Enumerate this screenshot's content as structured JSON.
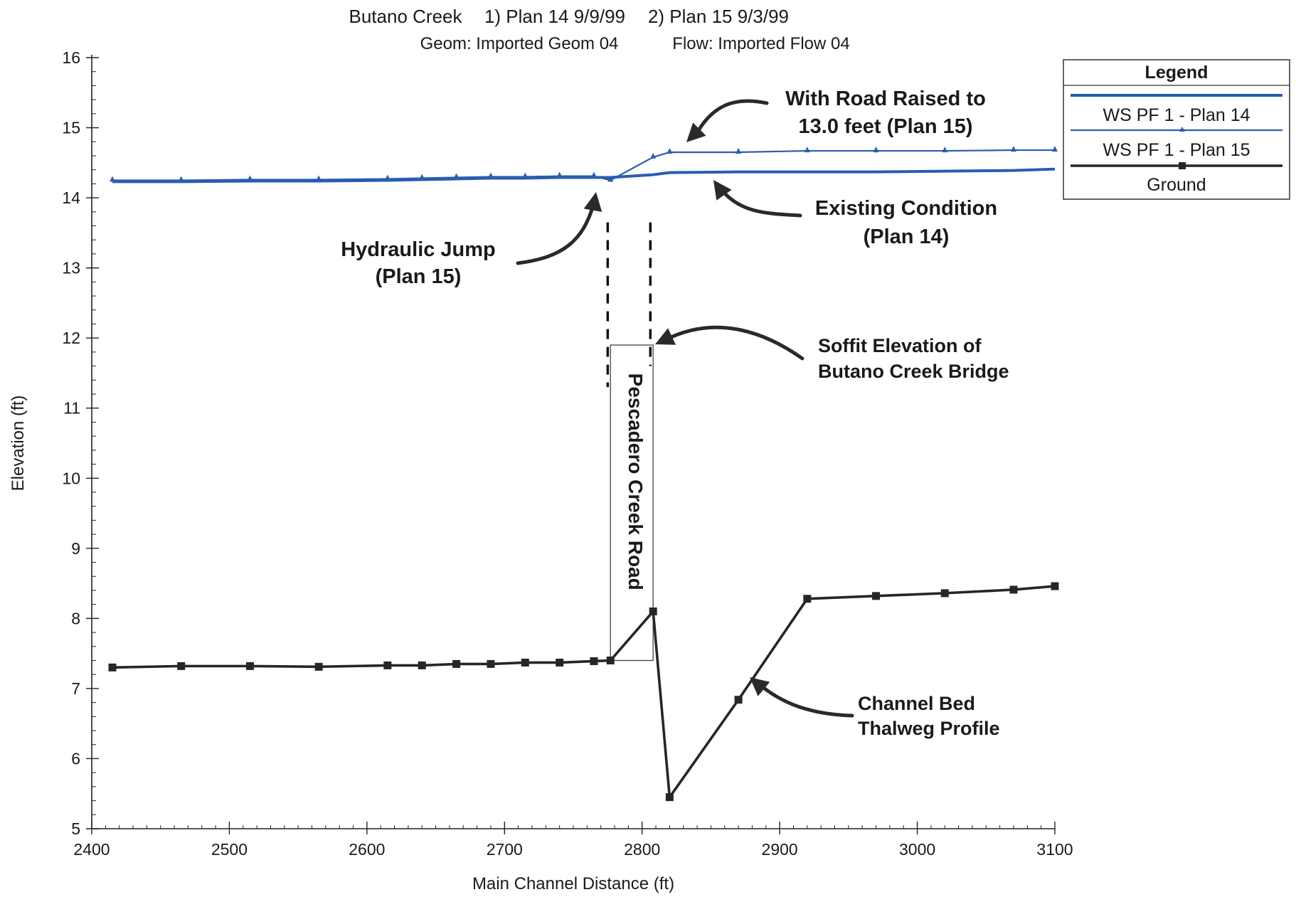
{
  "header": {
    "line1": [
      {
        "key": "river",
        "text": "Butano Creek"
      },
      {
        "key": "plan1",
        "text": "1) Plan 14    9/9/99"
      },
      {
        "key": "plan2",
        "text": "2) Plan 15    9/3/99"
      }
    ],
    "line2": [
      {
        "key": "geom",
        "text": "Geom: Imported Geom 04"
      },
      {
        "key": "flow",
        "text": "Flow: Imported Flow 04"
      }
    ]
  },
  "legend": {
    "title": "Legend",
    "entries": [
      {
        "key": "plan14",
        "label": "WS  PF 1 - Plan 14",
        "color": "#2a5db0",
        "marker": "none"
      },
      {
        "key": "plan15",
        "label": "WS  PF 1 - Plan 15",
        "color": "#2a5db0",
        "marker": "triangle"
      },
      {
        "key": "ground",
        "label": "Ground",
        "color": "#262626",
        "marker": "square"
      }
    ]
  },
  "annotations": [
    {
      "key": "road-raised",
      "lines": [
        "With Road Raised to",
        "13.0 feet (Plan 15)"
      ]
    },
    {
      "key": "existing",
      "lines": [
        "Existing Condition",
        "(Plan 14)"
      ]
    },
    {
      "key": "jump",
      "lines": [
        "Hydraulic Jump",
        "(Plan 15)"
      ]
    },
    {
      "key": "soffit",
      "lines": [
        "Soffit Elevation of",
        "Butano Creek Bridge"
      ]
    },
    {
      "key": "road",
      "lines": [
        "Pescadero Creek Road"
      ]
    },
    {
      "key": "thalweg",
      "lines": [
        "Channel Bed",
        "Thalweg Profile"
      ]
    }
  ],
  "chart_data": {
    "type": "line",
    "title": "Butano Creek    1) Plan 14    9/9/99    2) Plan 15    9/3/99",
    "subtitle": "Geom: Imported Geom 04    Flow: Imported Flow 04",
    "xlabel": "Main Channel Distance (ft)",
    "ylabel": "Elevation (ft)",
    "xlim": [
      2400,
      3100
    ],
    "ylim": [
      5,
      16
    ],
    "x_ticks": [
      2400,
      2500,
      2600,
      2700,
      2800,
      2900,
      3000,
      3100
    ],
    "y_ticks": [
      5,
      6,
      7,
      8,
      9,
      10,
      11,
      12,
      13,
      14,
      15,
      16
    ],
    "grid": false,
    "legend_position": "right",
    "series": [
      {
        "name": "WS  PF 1 - Plan 14",
        "color": "#2a5db0",
        "x": [
          2415,
          2465,
          2515,
          2565,
          2615,
          2640,
          2665,
          2690,
          2715,
          2740,
          2765,
          2777,
          2808,
          2820,
          2870,
          2920,
          2970,
          3020,
          3070,
          3100
        ],
        "y": [
          14.23,
          14.23,
          14.24,
          14.24,
          14.25,
          14.26,
          14.27,
          14.28,
          14.28,
          14.29,
          14.29,
          14.29,
          14.33,
          14.36,
          14.37,
          14.37,
          14.37,
          14.38,
          14.39,
          14.41
        ]
      },
      {
        "name": "WS  PF 1 - Plan 15",
        "color": "#2a5db0",
        "x": [
          2415,
          2465,
          2515,
          2565,
          2615,
          2640,
          2665,
          2690,
          2715,
          2740,
          2765,
          2777,
          2808,
          2820,
          2870,
          2920,
          2970,
          3020,
          3070,
          3100
        ],
        "y": [
          14.25,
          14.25,
          14.26,
          14.26,
          14.27,
          14.28,
          14.29,
          14.3,
          14.3,
          14.31,
          14.31,
          14.25,
          14.58,
          14.65,
          14.65,
          14.67,
          14.67,
          14.67,
          14.68,
          14.68
        ]
      },
      {
        "name": "Ground",
        "color": "#262626",
        "x": [
          2415,
          2465,
          2515,
          2565,
          2615,
          2640,
          2665,
          2690,
          2715,
          2740,
          2765,
          2777,
          2808,
          2820,
          2870,
          2920,
          2970,
          3020,
          3070,
          3100
        ],
        "y": [
          7.3,
          7.32,
          7.32,
          7.31,
          7.33,
          7.33,
          7.35,
          7.35,
          7.37,
          7.37,
          7.39,
          7.4,
          8.1,
          5.45,
          6.84,
          8.28,
          8.32,
          8.36,
          8.41,
          8.46
        ]
      }
    ],
    "bridge": {
      "x_start": 2777,
      "x_end": 2808,
      "soffit_elevation": 11.9,
      "road_top_elevation": 11.9
    },
    "dashed_markers": [
      {
        "x": 2775,
        "y_range": [
          11.3,
          13.65
        ]
      },
      {
        "x": 2806,
        "y_range": [
          11.6,
          13.65
        ]
      }
    ]
  }
}
